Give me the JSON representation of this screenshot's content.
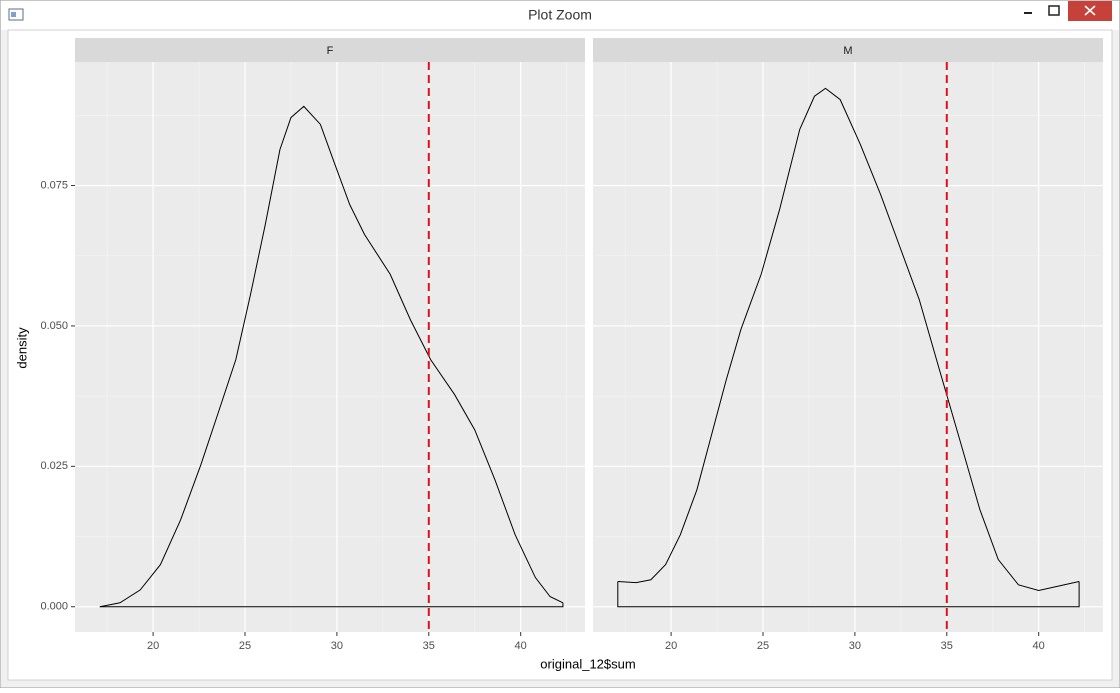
{
  "window": {
    "title": "Plot Zoom"
  },
  "chart_data": {
    "type": "density",
    "xlabel": "original_12$sum",
    "ylabel": "density",
    "xlim": [
      15.75,
      43.5
    ],
    "ylim": [
      -0.0045,
      0.097
    ],
    "xticks": [
      20,
      25,
      30,
      35,
      40
    ],
    "yticks": [
      {
        "value": 0,
        "label": "0.000"
      },
      {
        "value": 0.025,
        "label": "0.025"
      },
      {
        "value": 0.05,
        "label": "0.050"
      },
      {
        "value": 0.075,
        "label": "0.075"
      }
    ],
    "grid": true,
    "line_color": "#000000",
    "vline": 35,
    "vline_color": "#e0101a",
    "facets": [
      {
        "name": "F",
        "x": [
          17.1,
          18.2,
          19.3,
          20.4,
          21.5,
          22.6,
          23.6,
          24.5,
          25.3,
          26.1,
          26.9,
          27.5,
          28.2,
          29.1,
          29.9,
          30.7,
          31.5,
          32.9,
          34.0,
          35.1,
          36.4,
          37.5,
          38.6,
          39.7,
          40.8,
          41.6,
          42.3
        ],
        "values": [
          0.0,
          0.0007,
          0.003,
          0.0075,
          0.0155,
          0.0253,
          0.0351,
          0.044,
          0.0556,
          0.068,
          0.0814,
          0.0871,
          0.0891,
          0.0859,
          0.0787,
          0.0716,
          0.0663,
          0.0592,
          0.0511,
          0.044,
          0.0378,
          0.0315,
          0.0226,
          0.0128,
          0.0052,
          0.0018,
          0.0007
        ]
      },
      {
        "name": "M",
        "x": [
          17.1,
          18.1,
          18.9,
          19.7,
          20.5,
          21.4,
          22.2,
          23.0,
          23.8,
          24.9,
          25.9,
          27.0,
          27.8,
          28.4,
          29.2,
          30.3,
          31.4,
          32.4,
          33.5,
          34.6,
          35.7,
          36.8,
          37.8,
          38.9,
          40.0,
          41.1,
          42.2
        ],
        "values": [
          0.0045,
          0.0043,
          0.0048,
          0.0075,
          0.0128,
          0.0208,
          0.0306,
          0.0404,
          0.0494,
          0.0592,
          0.0707,
          0.085,
          0.0909,
          0.0923,
          0.0903,
          0.0823,
          0.0734,
          0.0645,
          0.0547,
          0.0422,
          0.0298,
          0.0173,
          0.0084,
          0.0039,
          0.0029,
          0.0037,
          0.0045
        ]
      }
    ]
  }
}
